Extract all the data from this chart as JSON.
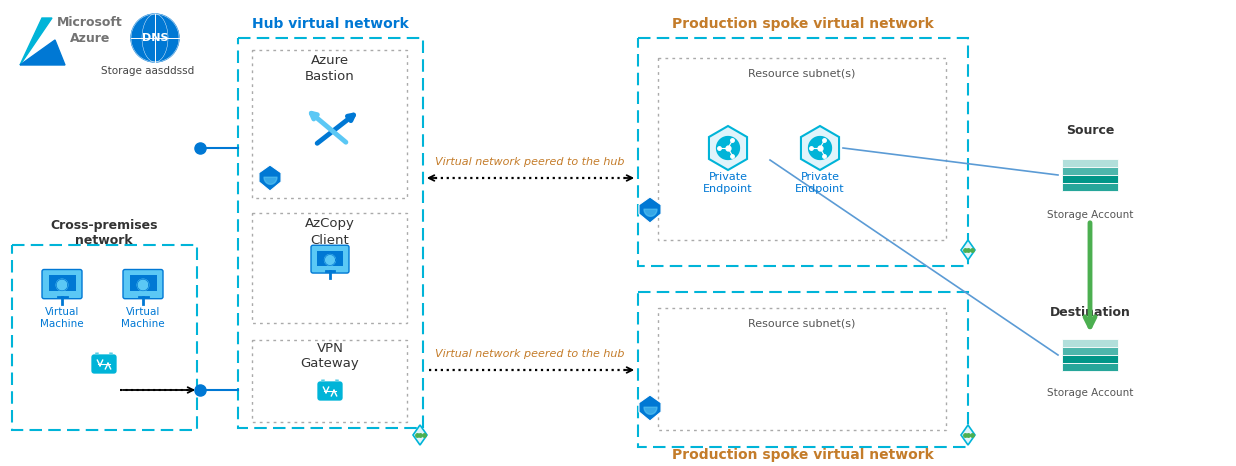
{
  "bg_color": "#ffffff",
  "dns_text": "DNS",
  "storage_label": "Storage aasddssd",
  "cross_premises_label": "Cross-premises\nnetwork",
  "hub_label": "Hub virtual network",
  "azure_bastion_label": "Azure\nBastion",
  "azcopy_label": "AzCopy\nClient",
  "vpn_label": "VPN\nGateway",
  "prod_spoke_top_label": "Production spoke virtual network",
  "prod_spoke_bottom_label": "Production spoke virtual network",
  "resource_subnet_top": "Resource subnet(s)",
  "resource_subnet_bottom": "Resource subnet(s)",
  "private_ep1_label": "Private\nEndpoint",
  "private_ep2_label": "Private\nEndpoint",
  "vm1_label": "Virtual\nMachine",
  "vm2_label": "Virtual\nMachine",
  "source_label": "Source",
  "source_sub": "Storage Account",
  "dest_label": "Destination",
  "dest_sub": "Storage Account",
  "vnet_peer_top": "Virtual network peered to the hub",
  "vnet_peer_bottom": "Virtual network peered to the hub",
  "dashed_box_color": "#00b4d8",
  "dotted_box_color": "#999999",
  "text_color_hub": "#0078d4",
  "text_color_prod": "#c47c2a",
  "text_color_vnetpeer": "#c47c2a",
  "azure_text_color": "#737373",
  "shield_color": "#0078d4",
  "lock_color": "#00b4d8",
  "storage_colors": [
    "#b2dfdb",
    "#4db6ac",
    "#009688",
    "#26a69a"
  ],
  "green_arrow": "#4caf50",
  "blue_line": "#5b9bd5",
  "dot_color": "#0078d4"
}
